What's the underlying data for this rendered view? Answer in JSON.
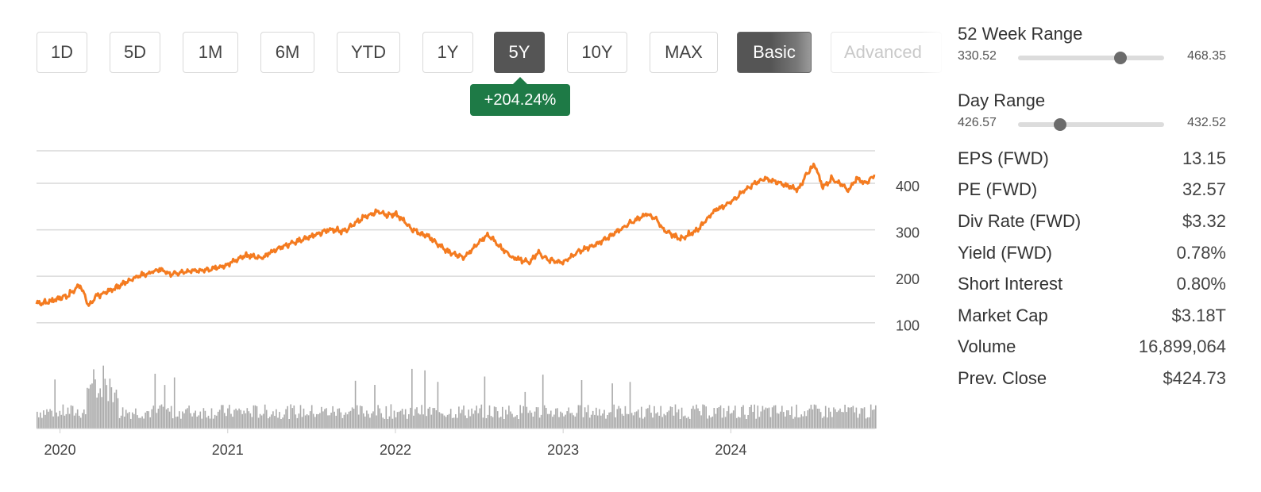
{
  "periods": {
    "p1d": "1D",
    "p5d": "5D",
    "p1m": "1M",
    "p6m": "6M",
    "pytd": "YTD",
    "p1y": "1Y",
    "p5y": "5Y",
    "p10y": "10Y",
    "pmax": "MAX"
  },
  "modes": {
    "basic": "Basic",
    "advanced": "Advanced"
  },
  "change_badge": "+204.24%",
  "stats": {
    "week52": {
      "label": "52 Week Range",
      "low": "330.52",
      "high": "468.35",
      "position": 0.7
    },
    "day": {
      "label": "Day Range",
      "low": "426.57",
      "high": "432.52",
      "position": 0.29
    },
    "rows": [
      {
        "label": "EPS (FWD)",
        "value": "13.15"
      },
      {
        "label": "PE (FWD)",
        "value": "32.57"
      },
      {
        "label": "Div Rate (FWD)",
        "value": "$3.32"
      },
      {
        "label": "Yield (FWD)",
        "value": "0.78%"
      },
      {
        "label": "Short Interest",
        "value": "0.80%"
      },
      {
        "label": "Market Cap",
        "value": "$3.18T"
      },
      {
        "label": "Volume",
        "value": "16,899,064"
      },
      {
        "label": "Prev. Close",
        "value": "$424.73"
      }
    ]
  },
  "colors": {
    "price_line": "#f47b20",
    "volume_bars": "#aaaaaa",
    "badge": "#1e7a46",
    "grid": "#d9d9d9"
  },
  "chart_data": {
    "type": "line",
    "ylim": [
      50,
      470
    ],
    "xlim": [
      2019.86,
      2024.86
    ],
    "yticks": [
      100,
      200,
      300,
      400
    ],
    "xticks": [
      {
        "label": "2020",
        "value": 2020
      },
      {
        "label": "2021",
        "value": 2021
      },
      {
        "label": "2022",
        "value": 2022
      },
      {
        "label": "2023",
        "value": 2023
      },
      {
        "label": "2024",
        "value": 2024
      }
    ],
    "grid": true,
    "price": {
      "x": [
        2019.86,
        2019.95,
        2020.05,
        2020.12,
        2020.17,
        2020.22,
        2020.3,
        2020.45,
        2020.6,
        2020.66,
        2020.75,
        2020.9,
        2021.0,
        2021.1,
        2021.2,
        2021.3,
        2021.45,
        2021.6,
        2021.7,
        2021.8,
        2021.9,
        2021.95,
        2022.0,
        2022.05,
        2022.1,
        2022.2,
        2022.3,
        2022.4,
        2022.45,
        2022.55,
        2022.62,
        2022.7,
        2022.8,
        2022.85,
        2022.92,
        2023.0,
        2023.1,
        2023.2,
        2023.3,
        2023.4,
        2023.5,
        2023.55,
        2023.6,
        2023.7,
        2023.8,
        2023.9,
        2024.0,
        2024.1,
        2024.2,
        2024.3,
        2024.4,
        2024.45,
        2024.5,
        2024.55,
        2024.6,
        2024.65,
        2024.7,
        2024.75,
        2024.8,
        2024.86
      ],
      "y": [
        140,
        147,
        160,
        182,
        138,
        157,
        170,
        198,
        215,
        205,
        210,
        215,
        225,
        245,
        240,
        260,
        280,
        300,
        297,
        325,
        340,
        330,
        335,
        320,
        300,
        285,
        255,
        240,
        255,
        290,
        265,
        240,
        230,
        250,
        235,
        230,
        255,
        270,
        290,
        315,
        335,
        325,
        300,
        280,
        300,
        340,
        360,
        390,
        410,
        400,
        385,
        420,
        440,
        390,
        410,
        400,
        385,
        410,
        400,
        418
      ]
    },
    "volume_ylim": [
      0,
      1
    ]
  }
}
